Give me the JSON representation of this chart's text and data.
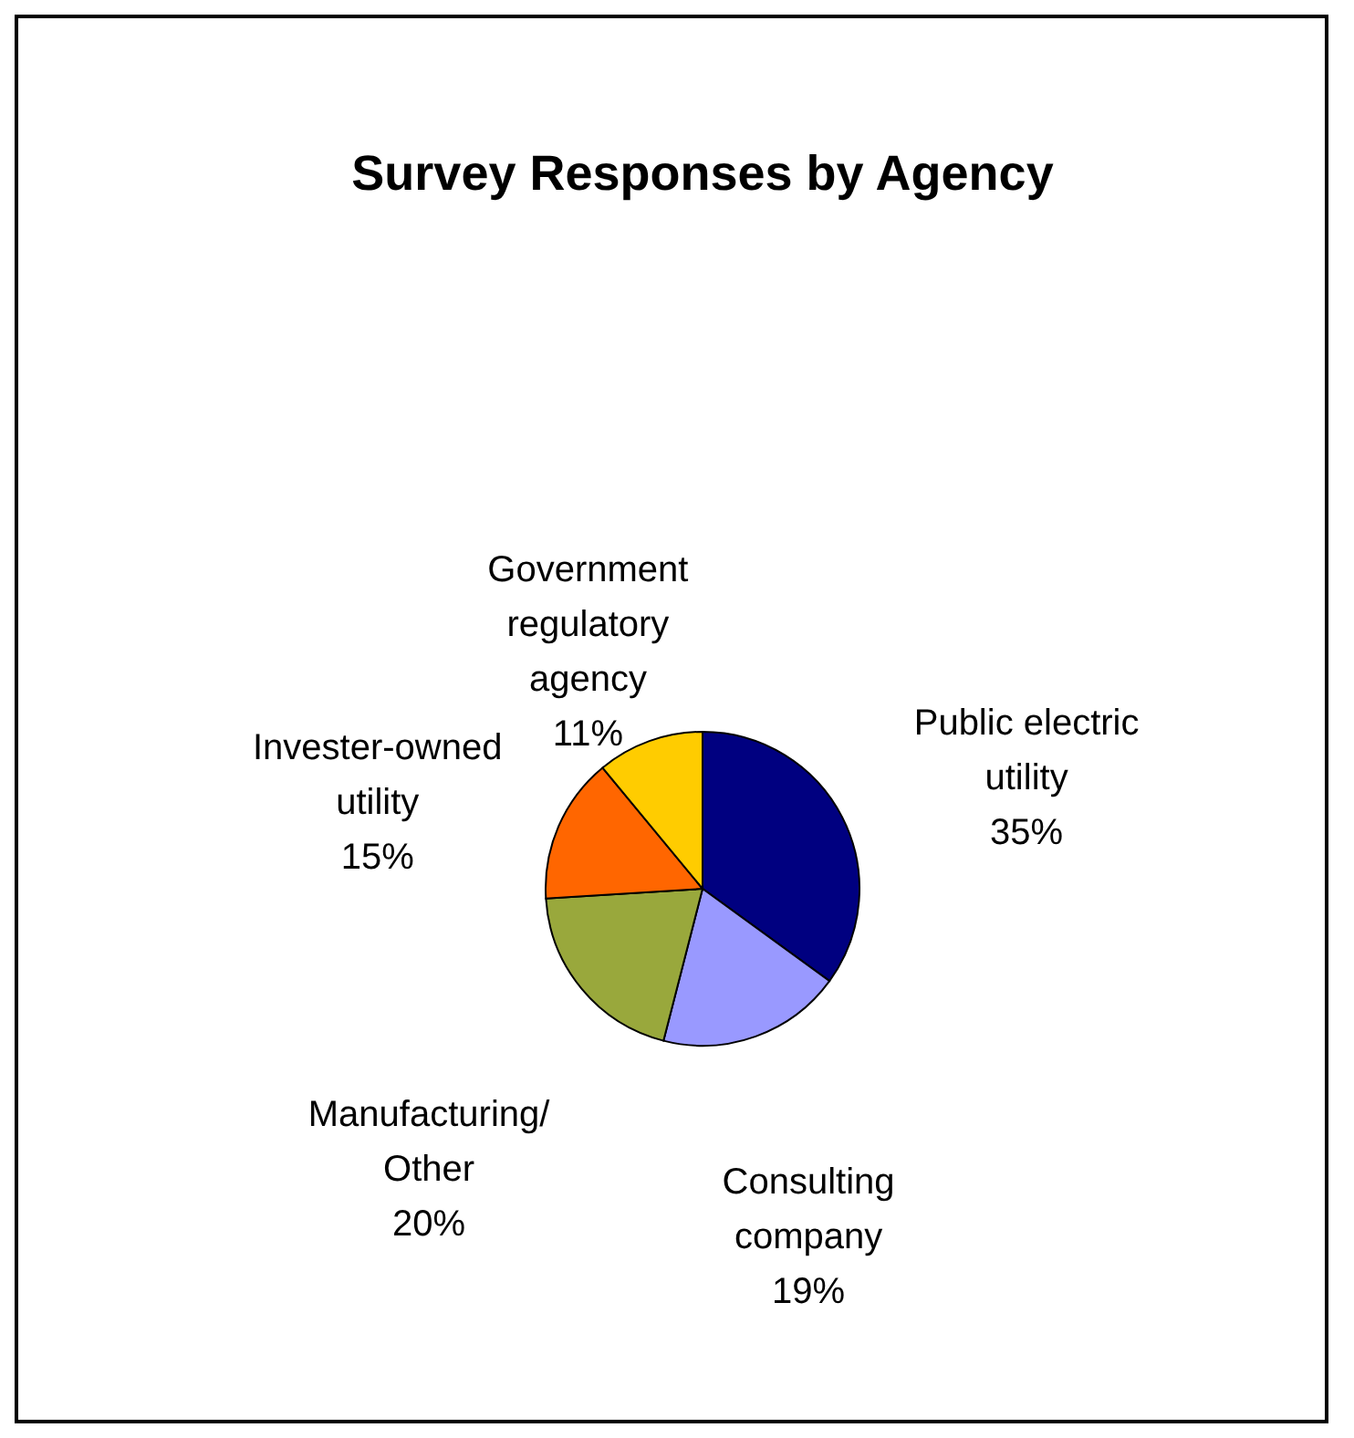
{
  "chart_data": {
    "type": "pie",
    "title": "Survey Responses by Agency",
    "categories": [
      "Public electric utility",
      "Consulting company",
      "Manufacturing/Other",
      "Invester-owned utility",
      "Government regulatory agency"
    ],
    "values": [
      35,
      19,
      20,
      15,
      11
    ],
    "value_labels": [
      "35%",
      "19%",
      "20%",
      "15%",
      "11%"
    ],
    "colors": [
      "#000080",
      "#9999ff",
      "#99a83c",
      "#ff6600",
      "#ffcc00"
    ],
    "legend": false
  }
}
